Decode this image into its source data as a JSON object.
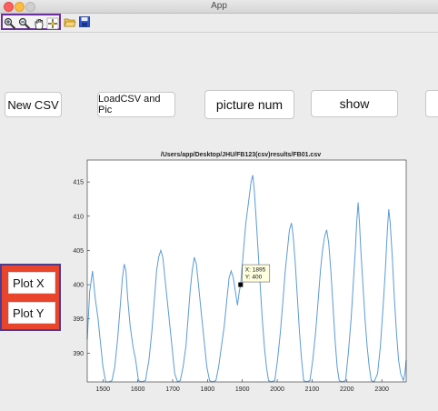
{
  "window": {
    "title": "App"
  },
  "toolbar": {
    "icons": [
      "zoom-in-icon",
      "zoom-out-icon",
      "pan-hand-icon",
      "data-cursor-icon",
      "open-folder-icon",
      "save-icon"
    ]
  },
  "buttons": {
    "new_csv": "New CSV",
    "load_csv_pic": "LoadCSV and Pic",
    "picture_num": "picture num",
    "show": "show",
    "plot_x": "Plot X",
    "plot_y": "Plot Y"
  },
  "colors": {
    "line": "#5b9bd5",
    "highlight": "#e8452c",
    "highlight_border": "#4e3b8f"
  },
  "chart_data": {
    "type": "line",
    "title": "/Users/app/Desktop/JHU/FB123(csv)results/FB01.csv",
    "xlabel": "",
    "ylabel": "",
    "xlim": [
      1455,
      2370
    ],
    "ylim": [
      385.8,
      418.2
    ],
    "xticks": [
      1500,
      1600,
      1700,
      1800,
      1900,
      2000,
      2100,
      2200,
      2300
    ],
    "yticks": [
      390,
      395,
      400,
      405,
      410,
      415
    ],
    "grid": false,
    "series": [
      {
        "name": "",
        "points": [
          [
            1455,
            392
          ],
          [
            1462,
            399
          ],
          [
            1470,
            402
          ],
          [
            1478,
            398
          ],
          [
            1486,
            395
          ],
          [
            1492,
            392
          ],
          [
            1500,
            388
          ],
          [
            1508,
            385.8
          ],
          [
            1518,
            385.8
          ],
          [
            1526,
            386
          ],
          [
            1534,
            388
          ],
          [
            1542,
            392
          ],
          [
            1550,
            397
          ],
          [
            1556,
            401
          ],
          [
            1561,
            403
          ],
          [
            1566,
            402
          ],
          [
            1571,
            398
          ],
          [
            1578,
            394
          ],
          [
            1586,
            391
          ],
          [
            1594,
            389
          ],
          [
            1602,
            386
          ],
          [
            1610,
            385.8
          ],
          [
            1622,
            386
          ],
          [
            1632,
            389
          ],
          [
            1640,
            393
          ],
          [
            1648,
            398
          ],
          [
            1654,
            402
          ],
          [
            1660,
            404
          ],
          [
            1666,
            405
          ],
          [
            1672,
            404
          ],
          [
            1678,
            401
          ],
          [
            1686,
            397
          ],
          [
            1694,
            393
          ],
          [
            1700,
            390
          ],
          [
            1706,
            387
          ],
          [
            1714,
            385.8
          ],
          [
            1722,
            386
          ],
          [
            1730,
            388
          ],
          [
            1738,
            391
          ],
          [
            1744,
            395
          ],
          [
            1750,
            399
          ],
          [
            1756,
            402
          ],
          [
            1762,
            404
          ],
          [
            1768,
            403
          ],
          [
            1774,
            400
          ],
          [
            1782,
            396
          ],
          [
            1790,
            392
          ],
          [
            1798,
            388
          ],
          [
            1806,
            386
          ],
          [
            1814,
            385.8
          ],
          [
            1824,
            386
          ],
          [
            1832,
            388
          ],
          [
            1840,
            391
          ],
          [
            1848,
            394
          ],
          [
            1856,
            398
          ],
          [
            1862,
            401
          ],
          [
            1868,
            402
          ],
          [
            1874,
            401
          ],
          [
            1880,
            399
          ],
          [
            1886,
            397
          ],
          [
            1891,
            399
          ],
          [
            1895,
            400
          ],
          [
            1900,
            403
          ],
          [
            1905,
            406
          ],
          [
            1910,
            409
          ],
          [
            1915,
            411
          ],
          [
            1920,
            413
          ],
          [
            1925,
            415
          ],
          [
            1930,
            416
          ],
          [
            1934,
            414
          ],
          [
            1939,
            410
          ],
          [
            1945,
            405
          ],
          [
            1951,
            400
          ],
          [
            1957,
            395
          ],
          [
            1963,
            391
          ],
          [
            1969,
            388
          ],
          [
            1975,
            386
          ],
          [
            1983,
            385.8
          ],
          [
            1993,
            386
          ],
          [
            2001,
            389
          ],
          [
            2009,
            393
          ],
          [
            2017,
            398
          ],
          [
            2023,
            402
          ],
          [
            2029,
            405
          ],
          [
            2035,
            408
          ],
          [
            2041,
            409
          ],
          [
            2046,
            407
          ],
          [
            2052,
            403
          ],
          [
            2058,
            398
          ],
          [
            2064,
            393
          ],
          [
            2070,
            389
          ],
          [
            2076,
            386
          ],
          [
            2084,
            385.8
          ],
          [
            2094,
            386
          ],
          [
            2102,
            389
          ],
          [
            2110,
            393
          ],
          [
            2118,
            398
          ],
          [
            2124,
            402
          ],
          [
            2130,
            405
          ],
          [
            2136,
            407
          ],
          [
            2142,
            408
          ],
          [
            2148,
            406
          ],
          [
            2154,
            402
          ],
          [
            2160,
            397
          ],
          [
            2166,
            392
          ],
          [
            2172,
            388
          ],
          [
            2178,
            386
          ],
          [
            2186,
            385.8
          ],
          [
            2196,
            386
          ],
          [
            2204,
            390
          ],
          [
            2212,
            395
          ],
          [
            2218,
            400
          ],
          [
            2224,
            405
          ],
          [
            2228,
            409
          ],
          [
            2232,
            412
          ],
          [
            2236,
            409
          ],
          [
            2240,
            405
          ],
          [
            2246,
            400
          ],
          [
            2252,
            395
          ],
          [
            2258,
            391
          ],
          [
            2264,
            388
          ],
          [
            2270,
            386
          ],
          [
            2278,
            385.8
          ],
          [
            2288,
            387
          ],
          [
            2296,
            391
          ],
          [
            2304,
            397
          ],
          [
            2310,
            402
          ],
          [
            2316,
            408
          ],
          [
            2320,
            411
          ],
          [
            2324,
            409
          ],
          [
            2330,
            404
          ],
          [
            2336,
            398
          ],
          [
            2342,
            393
          ],
          [
            2348,
            389
          ],
          [
            2354,
            387
          ],
          [
            2362,
            386
          ],
          [
            2366,
            387
          ],
          [
            2370,
            389
          ]
        ]
      }
    ],
    "datatip": {
      "x": 1895,
      "y": 400,
      "label_x": "X: 1895",
      "label_y": "Y: 400"
    }
  }
}
